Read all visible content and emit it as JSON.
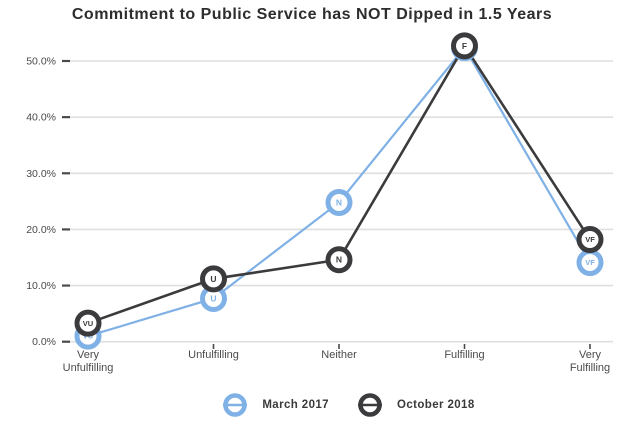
{
  "title": "Commitment to Public Service has NOT Dipped in 1.5 Years",
  "colors": {
    "series_march_2017": "#7FB1E6",
    "series_october_2018": "#3B3B3E",
    "gridline": "#DFDFDF",
    "tick": "#4A4A4A",
    "axis_text": "#4A4A4A",
    "title_text": "#2D2D2D",
    "marker_fill": "#FFFFFF",
    "background": "#FFFFFF"
  },
  "chart_data": {
    "type": "line",
    "title": "Commitment to Public Service has NOT Dipped in 1.5 Years",
    "xlabel": "",
    "ylabel": "",
    "categories": [
      "Very Unfulfilling",
      "Unfulfilling",
      "Neither",
      "Fulfilling",
      "Very Fulfilling"
    ],
    "marker_labels": [
      "VU",
      "U",
      "N",
      "F",
      "VF"
    ],
    "series": [
      {
        "name": "March 2017",
        "color": "#7FB1E6",
        "values": [
          1.0,
          7.7,
          24.8,
          52.4,
          14.1
        ]
      },
      {
        "name": "October 2018",
        "color": "#3B3B3E",
        "values": [
          3.3,
          11.2,
          14.6,
          52.7,
          18.2
        ]
      }
    ],
    "y_ticks": [
      {
        "value": 0,
        "label": "0.0%"
      },
      {
        "value": 10,
        "label": "10.0%"
      },
      {
        "value": 20,
        "label": "20.0%"
      },
      {
        "value": 30,
        "label": "30.0%"
      },
      {
        "value": 40,
        "label": "40.0%"
      },
      {
        "value": 50,
        "label": "50.0%"
      }
    ],
    "ylim": [
      0,
      54
    ],
    "grid": true,
    "legend_position": "bottom"
  }
}
